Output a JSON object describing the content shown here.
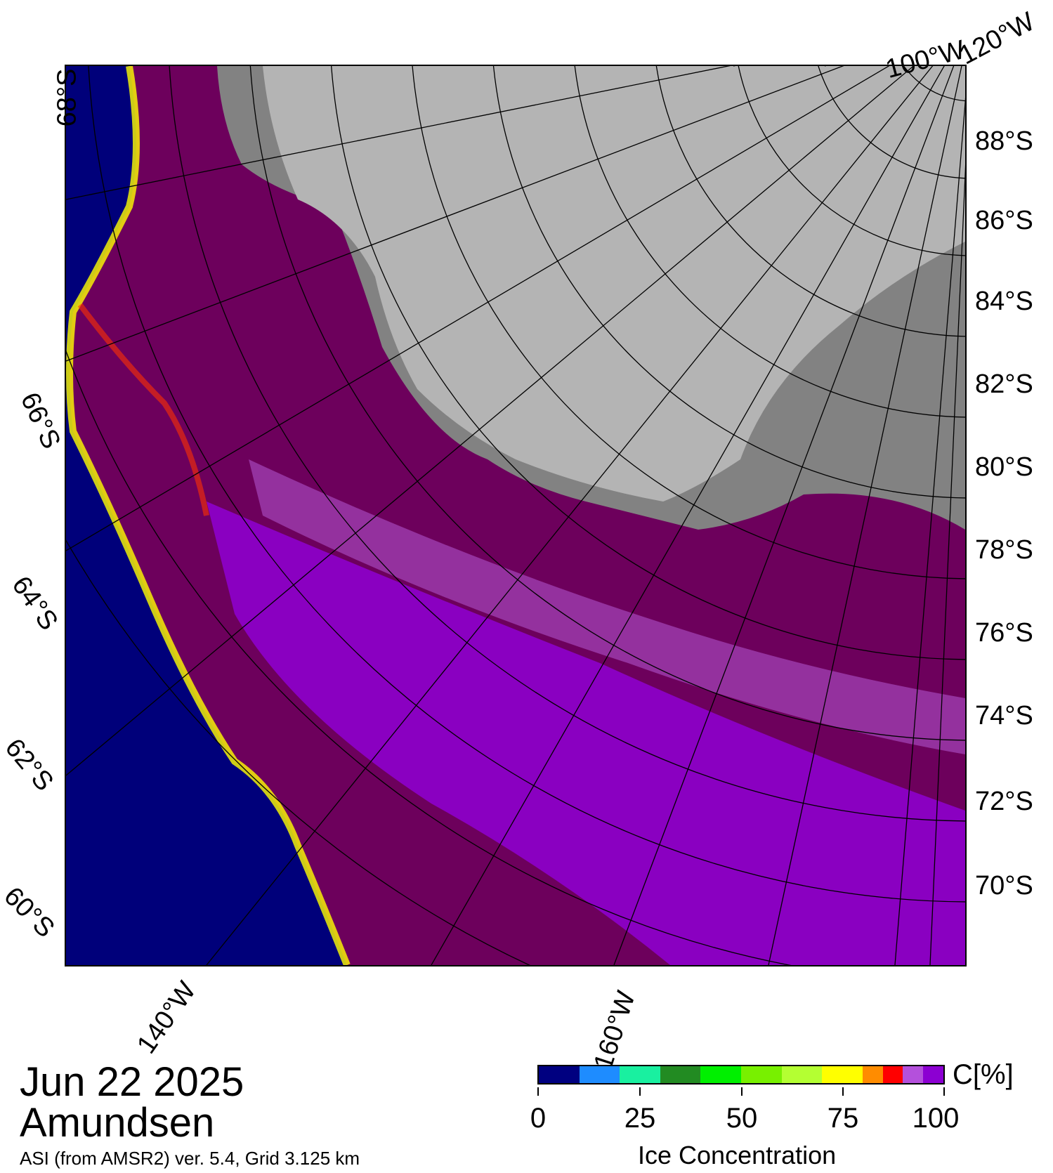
{
  "map": {
    "date": "Jun 22 2025",
    "region": "Amundsen",
    "source": "ASI (from AMSR2) ver. 5.4,  Grid 3.125 km",
    "lat_labels_right": [
      "88°S",
      "86°S",
      "84°S",
      "82°S",
      "80°S",
      "78°S",
      "76°S",
      "74°S",
      "72°S",
      "70°S"
    ],
    "lat_labels_left": [
      "68°S",
      "66°S",
      "64°S",
      "62°S",
      "60°S"
    ],
    "lon_labels": [
      "100°W",
      "120°W",
      "140°W",
      "160°W"
    ],
    "colors": {
      "open_water": "#00007a",
      "high_ice": "#6d005c",
      "mid_ice": "#8f00d2",
      "lighter_ice": "#b45ad6",
      "land": "#b4b4b4",
      "shelf_ice": "#828282",
      "edge_yellow": "#ffff00",
      "edge_red": "#ff0000"
    }
  },
  "legend": {
    "unit": "C[%]",
    "title": "Ice Concentration",
    "tick_labels": [
      "0",
      "25",
      "50",
      "75",
      "100"
    ],
    "colors": [
      "#000080",
      "#1e8cff",
      "#19f0a0",
      "#228b22",
      "#00f000",
      "#78f000",
      "#b4ff32",
      "#ffff00",
      "#ff8c00",
      "#ff0000",
      "#b450dc",
      "#8c00d2"
    ]
  }
}
